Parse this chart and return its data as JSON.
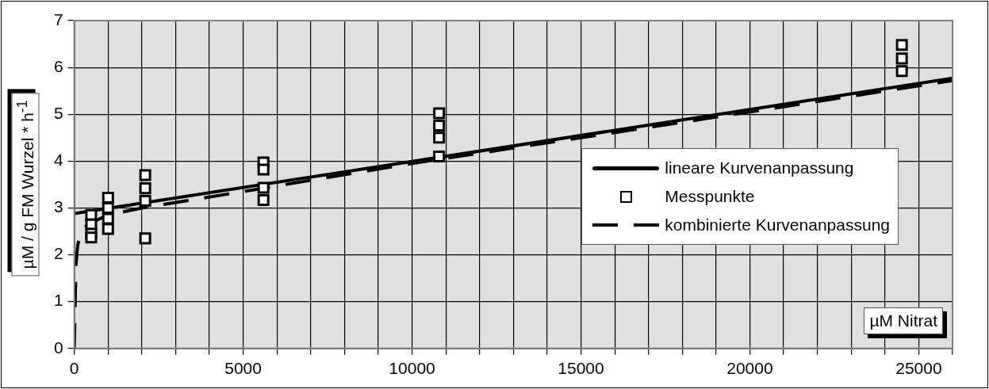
{
  "chart_data": {
    "type": "scatter",
    "xlabel": "µM Nitrat",
    "ylabel": "µM / g FM Wurzel * h$^{-1}$",
    "xlim": [
      0,
      26000
    ],
    "ylim": [
      0,
      7
    ],
    "xticks": [
      0,
      {
        "value": 1000,
        "label": null
      },
      {
        "value": 2000,
        "label": null
      },
      {
        "value": 3000,
        "label": null
      },
      {
        "value": 4000,
        "label": null
      },
      5000,
      {
        "value": 6000,
        "label": null
      },
      {
        "value": 7000,
        "label": null
      },
      {
        "value": 8000,
        "label": null
      },
      {
        "value": 9000,
        "label": null
      },
      10000,
      {
        "value": 11000,
        "label": null
      },
      {
        "value": 12000,
        "label": null
      },
      {
        "value": 13000,
        "label": null
      },
      {
        "value": 14000,
        "label": null
      },
      15000,
      {
        "value": 16000,
        "label": null
      },
      {
        "value": 17000,
        "label": null
      },
      {
        "value": 18000,
        "label": null
      },
      {
        "value": 19000,
        "label": null
      },
      20000,
      {
        "value": 21000,
        "label": null
      },
      {
        "value": 22000,
        "label": null
      },
      {
        "value": 23000,
        "label": null
      },
      {
        "value": 24000,
        "label": null
      },
      25000,
      {
        "value": 26000,
        "label": null
      }
    ],
    "yticks": [
      0,
      1,
      2,
      3,
      4,
      5,
      6,
      7
    ],
    "grid": true,
    "legend": "right",
    "series": [
      {
        "name": "lineare Kurvenanpassung",
        "type": "line",
        "color": "#000000",
        "marker": "none",
        "line_style": "solid",
        "x": [
          0,
          26000
        ],
        "values": [
          2.88,
          5.77
        ]
      },
      {
        "name": "Messpunkte",
        "type": "scatter",
        "color": "#000000",
        "marker": "square",
        "x": [
          500,
          500,
          500,
          500,
          1000,
          1000,
          1000,
          1000,
          2100,
          2100,
          2100,
          2100,
          5600,
          5600,
          5600,
          5600,
          10800,
          10800,
          10800,
          10800,
          24500,
          24500,
          24500
        ],
        "values": [
          2.85,
          2.65,
          2.45,
          2.37,
          3.22,
          3.0,
          2.77,
          2.55,
          3.7,
          3.42,
          3.15,
          2.35,
          3.97,
          3.82,
          3.43,
          3.17,
          5.02,
          4.76,
          4.5,
          4.1,
          6.48,
          6.19,
          5.92
        ]
      },
      {
        "name": "kombinierte Kurvenanpassung",
        "type": "line",
        "color": "#000000",
        "marker": "none",
        "line_style": "dashed",
        "x": [
          0,
          25,
          50,
          100,
          200,
          400,
          1000,
          2000,
          5000,
          10000,
          15000,
          20000,
          26000
        ],
        "values": [
          0,
          1,
          1.8,
          2.2,
          2.5,
          2.65,
          2.85,
          3.0,
          3.35,
          3.95,
          4.5,
          5.05,
          5.72
        ]
      }
    ]
  }
}
